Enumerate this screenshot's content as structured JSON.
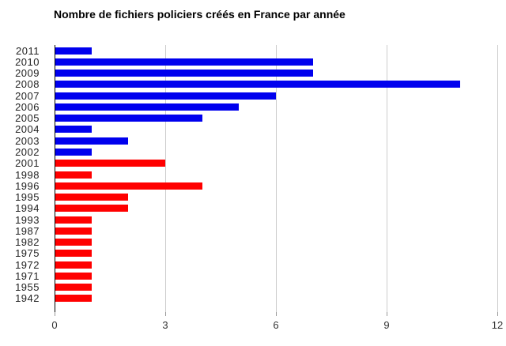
{
  "title": "Nombre de fichiers policiers créés en France par année",
  "chart_data": {
    "type": "bar",
    "orientation": "horizontal",
    "title": "Nombre de fichiers policiers créés en France par année",
    "categories": [
      "2011",
      "2010",
      "2009",
      "2008",
      "2007",
      "2006",
      "2005",
      "2004",
      "2003",
      "2002",
      "2001",
      "1998",
      "1996",
      "1995",
      "1994",
      "1993",
      "1987",
      "1982",
      "1975",
      "1972",
      "1971",
      "1955",
      "1942"
    ],
    "values": [
      1,
      7,
      7,
      11,
      6,
      5,
      4,
      1,
      2,
      1,
      3,
      1,
      4,
      2,
      2,
      1,
      1,
      1,
      1,
      1,
      1,
      1,
      1
    ],
    "bar_colors": [
      "blue",
      "blue",
      "blue",
      "blue",
      "blue",
      "blue",
      "blue",
      "blue",
      "blue",
      "blue",
      "red",
      "red",
      "red",
      "red",
      "red",
      "red",
      "red",
      "red",
      "red",
      "red",
      "red",
      "red",
      "red"
    ],
    "palette": {
      "blue": "#0000ee",
      "red": "#ff0000"
    },
    "xlabel": "",
    "ylabel": "",
    "xlim": [
      0,
      12
    ],
    "xticks": [
      0,
      3,
      6,
      9,
      12
    ],
    "grid": "vertical",
    "legend": "none",
    "axis_color": "#000000",
    "gridline_color": "#cccccc"
  }
}
